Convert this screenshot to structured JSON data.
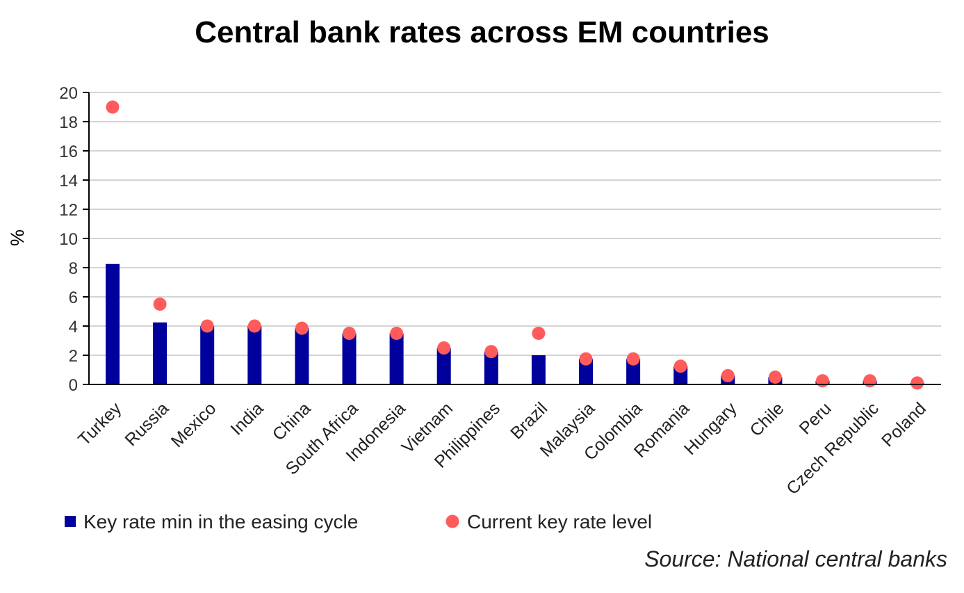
{
  "chart_data": {
    "type": "bar",
    "title": "Central bank rates across EM countries",
    "ylabel": "%",
    "xlabel": "",
    "ylim": [
      0,
      20
    ],
    "yticks": [
      0,
      2,
      4,
      6,
      8,
      10,
      12,
      14,
      16,
      18,
      20
    ],
    "grid": true,
    "legend_placement": "bottom-left",
    "categories": [
      "Turkey",
      "Russia",
      "Mexico",
      "India",
      "China",
      "South Africa",
      "Indonesia",
      "Vietnam",
      "Philippines",
      "Brazil",
      "Malaysia",
      "Colombia",
      "Romania",
      "Hungary",
      "Chile",
      "Peru",
      "Czech Republic",
      "Poland"
    ],
    "series": [
      {
        "name": "Key rate min in the easing cycle",
        "mark": "bar",
        "color": "#00009c",
        "values": [
          8.25,
          4.25,
          4.0,
          4.0,
          3.85,
          3.5,
          3.5,
          2.5,
          2.25,
          2.0,
          1.75,
          1.75,
          1.25,
          0.6,
          0.5,
          0.25,
          0.25,
          0.1
        ]
      },
      {
        "name": "Current key rate level",
        "mark": "dot",
        "color": "#ff5b5b",
        "values": [
          19.0,
          5.5,
          4.0,
          4.0,
          3.85,
          3.5,
          3.5,
          2.5,
          2.25,
          3.5,
          1.75,
          1.75,
          1.25,
          0.6,
          0.5,
          0.25,
          0.25,
          0.1
        ]
      }
    ],
    "source": "Source: National central banks"
  }
}
